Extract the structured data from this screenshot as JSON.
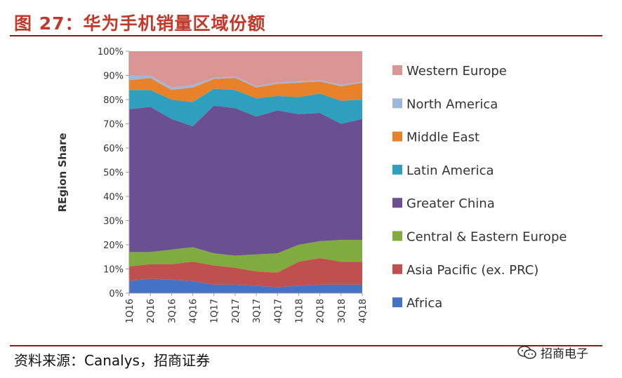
{
  "figure": {
    "title": "图 27：华为手机销量区域份额",
    "source": "资料来源：Canalys，招商证券",
    "watermark": "招商电子"
  },
  "chart_data": {
    "type": "area",
    "stacked": true,
    "ylabel": "REgion Share",
    "xlabel": "",
    "ylim": [
      0,
      100
    ],
    "y_ticks": [
      "0%",
      "10%",
      "20%",
      "30%",
      "40%",
      "50%",
      "60%",
      "70%",
      "80%",
      "90%",
      "100%"
    ],
    "x": [
      "1Q16",
      "2Q16",
      "3Q16",
      "4Q16",
      "1Q17",
      "2Q17",
      "3Q17",
      "4Q17",
      "1Q18",
      "2Q18",
      "3Q18",
      "4Q18"
    ],
    "legend_position": "right",
    "series": [
      {
        "name": "Africa",
        "color": "#4472c4",
        "values": [
          5,
          6,
          5.5,
          5,
          3.5,
          3.5,
          3,
          2.5,
          3,
          3.5,
          3.5,
          3.5
        ]
      },
      {
        "name": "Asia Pacific (ex. PRC)",
        "color": "#c0504d",
        "values": [
          6,
          6,
          6.5,
          8,
          8,
          7,
          6,
          6,
          10,
          11,
          9.5,
          9.5
        ]
      },
      {
        "name": "Central & Eastern Europe",
        "color": "#7fab3f",
        "values": [
          6,
          5,
          6,
          6,
          5,
          5,
          7,
          8,
          7,
          7,
          9,
          9
        ]
      },
      {
        "name": "Greater China",
        "color": "#6a4f91",
        "values": [
          59,
          60,
          54,
          50,
          61,
          61,
          57,
          59,
          54,
          53,
          48,
          50
        ]
      },
      {
        "name": "Latin America",
        "color": "#2e9fbd",
        "values": [
          8,
          7,
          8,
          10,
          7,
          7.5,
          7.5,
          6,
          7,
          8,
          9.5,
          8
        ]
      },
      {
        "name": "Middle East",
        "color": "#e7822a",
        "values": [
          4,
          5,
          4,
          6,
          4,
          5,
          4.5,
          5,
          6,
          5,
          6,
          7
        ]
      },
      {
        "name": "North America",
        "color": "#9fb8d9",
        "values": [
          2,
          1,
          1,
          1,
          0.5,
          0.5,
          0.5,
          0.5,
          0.5,
          0.5,
          0.5,
          0.5
        ]
      },
      {
        "name": "Western Europe",
        "color": "#d99694",
        "values": [
          10,
          10,
          15,
          14,
          11,
          10.5,
          14.5,
          13,
          12.5,
          12,
          14,
          12.5
        ]
      }
    ]
  }
}
